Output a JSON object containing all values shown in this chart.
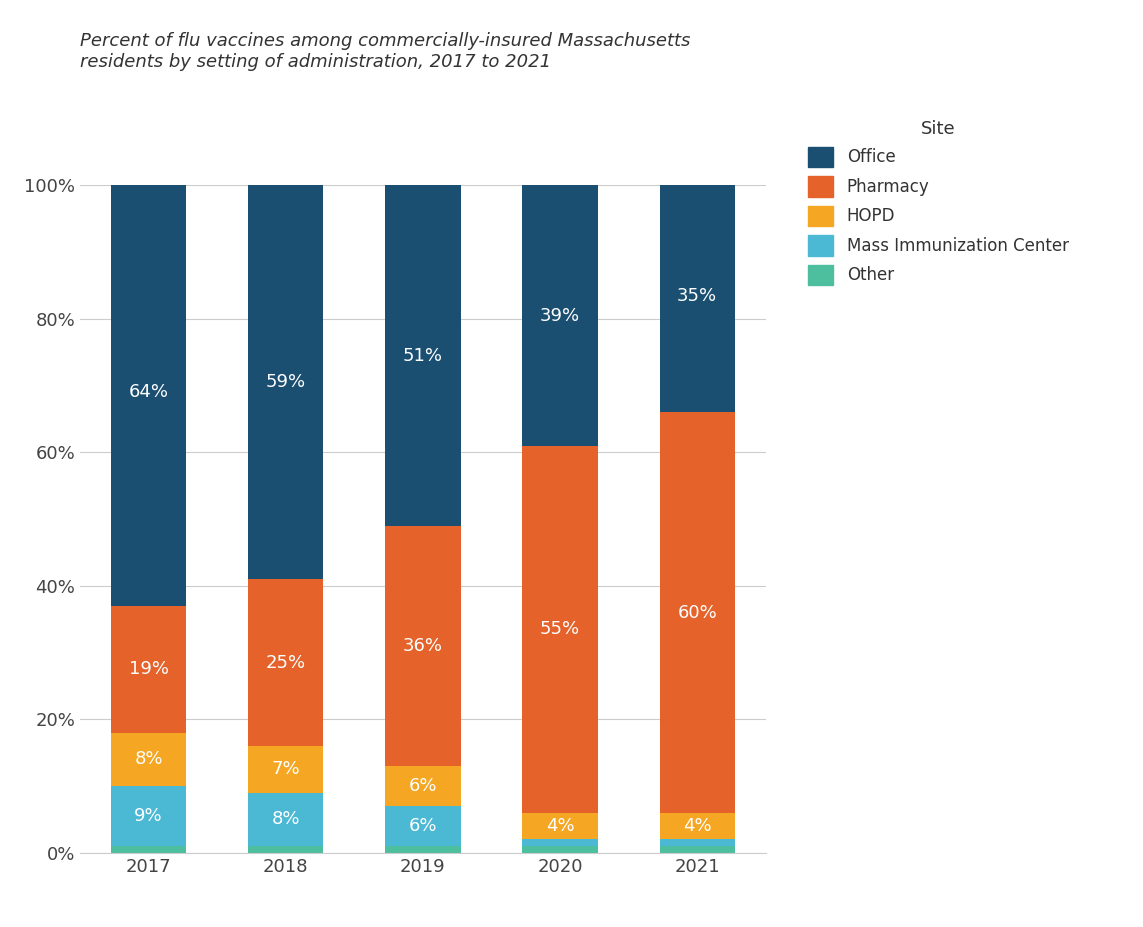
{
  "title": "Percent of flu vaccines among commercially-insured Massachusetts\nresidents by setting of administration, 2017 to 2021",
  "years": [
    "2017",
    "2018",
    "2019",
    "2020",
    "2021"
  ],
  "categories": [
    "Other",
    "Mass Immunization Center",
    "HOPD",
    "Pharmacy",
    "Office"
  ],
  "colors": {
    "Office": "#1a4f72",
    "Pharmacy": "#e5622a",
    "HOPD": "#f5a623",
    "Mass Immunization Center": "#4bb8d4",
    "Other": "#4dbf9e"
  },
  "data": {
    "Other": [
      1,
      1,
      1,
      1,
      1
    ],
    "Mass Immunization Center": [
      9,
      8,
      6,
      1,
      1
    ],
    "HOPD": [
      8,
      7,
      6,
      4,
      4
    ],
    "Pharmacy": [
      19,
      25,
      36,
      55,
      60
    ],
    "Office": [
      64,
      59,
      51,
      39,
      35
    ]
  },
  "labels": {
    "Other": [
      "",
      "",
      "",
      "",
      ""
    ],
    "Mass Immunization Center": [
      "9%",
      "8%",
      "6%",
      "",
      ""
    ],
    "HOPD": [
      "8%",
      "7%",
      "6%",
      "4%",
      "4%"
    ],
    "Pharmacy": [
      "19%",
      "25%",
      "36%",
      "55%",
      "60%"
    ],
    "Office": [
      "64%",
      "59%",
      "51%",
      "39%",
      "35%"
    ]
  },
  "legend_title": "Site",
  "legend_order": [
    "Office",
    "Pharmacy",
    "HOPD",
    "Mass Immunization Center",
    "Other"
  ],
  "background_color": "#ffffff",
  "bar_width": 0.55,
  "title_fontsize": 13,
  "tick_fontsize": 13,
  "label_fontsize": 13,
  "legend_fontsize": 12,
  "legend_title_fontsize": 13
}
